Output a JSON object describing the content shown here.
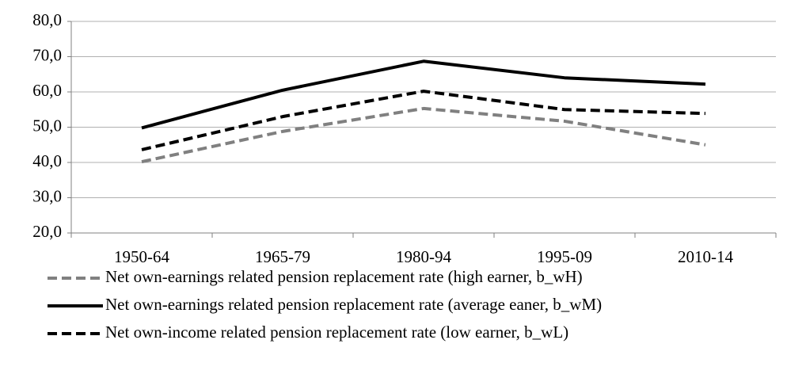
{
  "chart_data": {
    "type": "line",
    "categories": [
      "1950-64",
      "1965-79",
      "1980-94",
      "1995-09",
      "2010-14"
    ],
    "series": [
      {
        "name": "Net own-earnings related pension replacement rate (high earner, b_wH)",
        "color": "#808080",
        "dashed": true,
        "values": [
          40.2,
          48.8,
          55.3,
          51.7,
          45.0
        ]
      },
      {
        "name": "Net own-earnings related pension replacement rate (average eaner, b_wM)",
        "color": "#000000",
        "dashed": false,
        "values": [
          49.8,
          60.5,
          68.7,
          64.0,
          62.2
        ]
      },
      {
        "name": "Net own-income related pension replacement rate (low earner, b_wL)",
        "color": "#000000",
        "dashed": true,
        "values": [
          43.6,
          53.0,
          60.2,
          55.0,
          53.9
        ]
      }
    ],
    "ylim": [
      20,
      80
    ],
    "yticks": [
      {
        "value": 20,
        "label": "20,0"
      },
      {
        "value": 30,
        "label": "30,0"
      },
      {
        "value": 40,
        "label": "40,0"
      },
      {
        "value": 50,
        "label": "50,0"
      },
      {
        "value": 60,
        "label": "60,0"
      },
      {
        "value": 70,
        "label": "70,0"
      },
      {
        "value": 80,
        "label": "80,0"
      }
    ],
    "grid": true,
    "legend": "bottom"
  }
}
